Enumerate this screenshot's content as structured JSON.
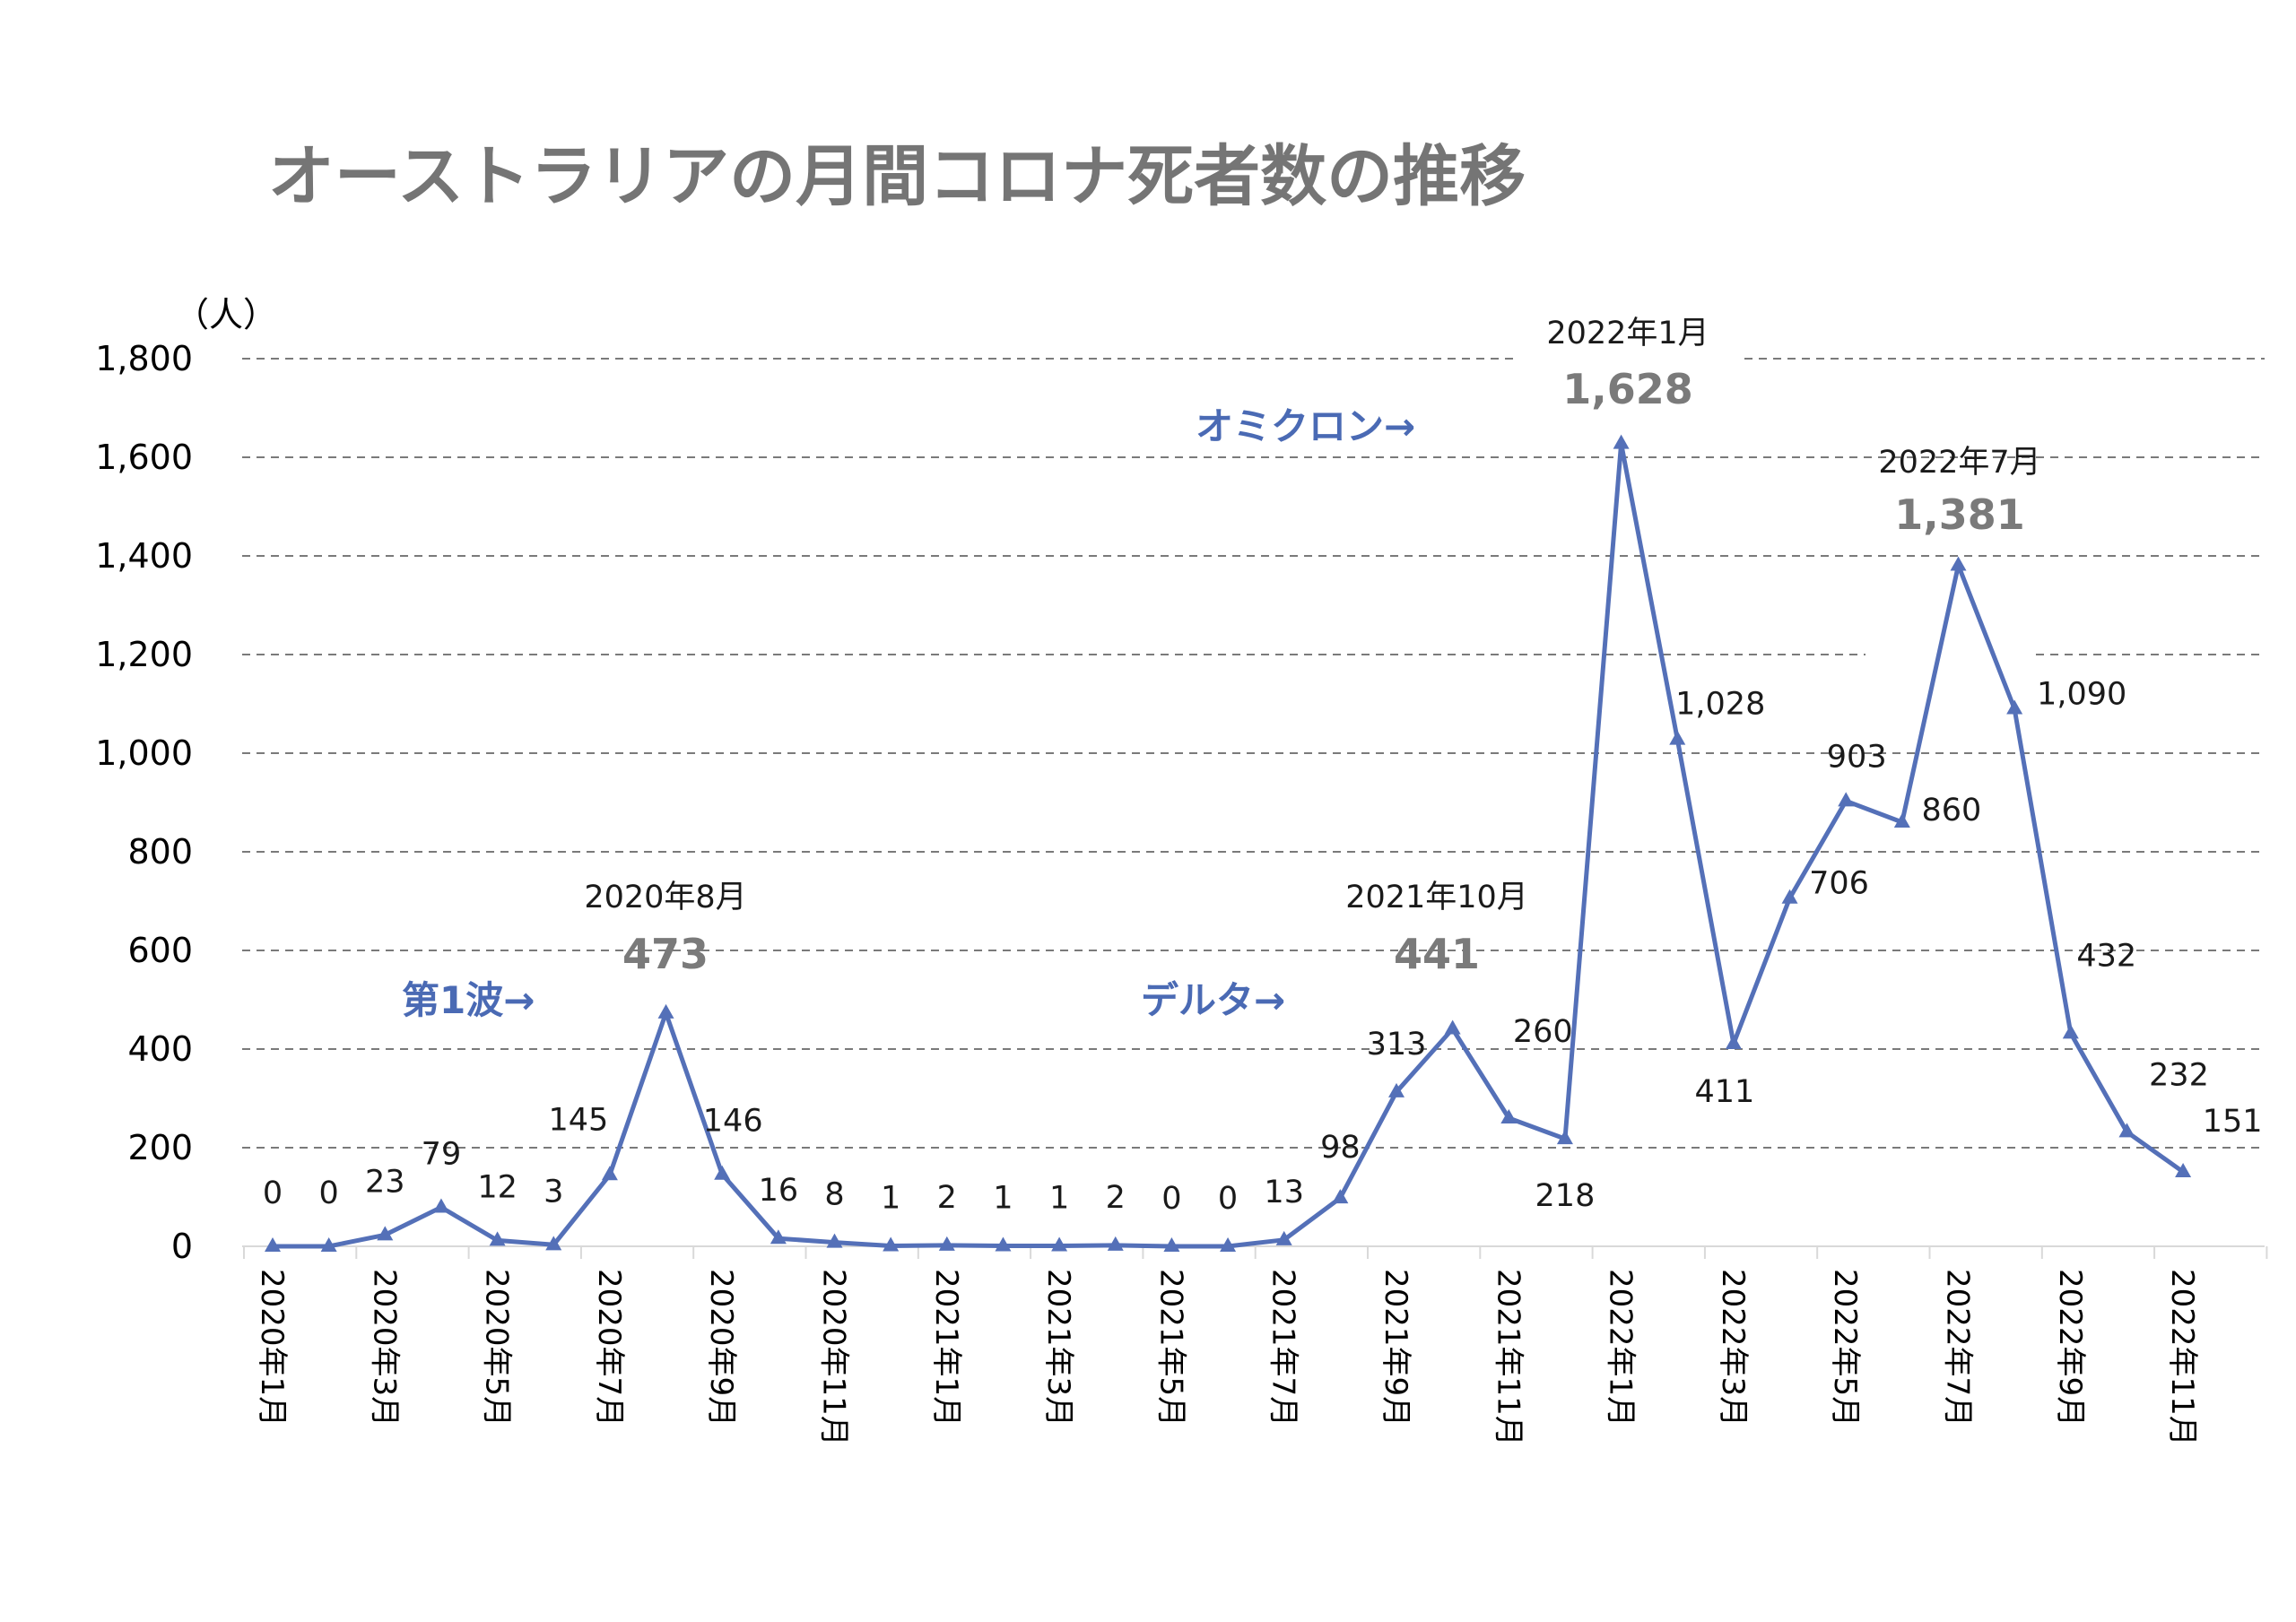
{
  "chart_data": {
    "type": "line",
    "title": "オーストラリアの月間コロナ死者数の推移",
    "y_unit": "（人）",
    "ylim": [
      0,
      1800
    ],
    "y_ticks": [
      "0",
      "200",
      "400",
      "600",
      "800",
      "1,000",
      "1,200",
      "1,400",
      "1,600",
      "1,800"
    ],
    "grid": true,
    "x": [
      "2020年1月",
      "2020年2月",
      "2020年3月",
      "2020年4月",
      "2020年5月",
      "2020年6月",
      "2020年7月",
      "2020年8月",
      "2020年9月",
      "2020年10月",
      "2020年11月",
      "2020年12月",
      "2021年1月",
      "2021年2月",
      "2021年3月",
      "2021年4月",
      "2021年5月",
      "2021年6月",
      "2021年7月",
      "2021年8月",
      "2021年9月",
      "2021年10月",
      "2021年11月",
      "2021年12月",
      "2022年1月",
      "2022年2月",
      "2022年3月",
      "2022年4月",
      "2022年5月",
      "2022年6月",
      "2022年7月",
      "2022年8月",
      "2022年9月",
      "2022年10月",
      "2022年11月"
    ],
    "x_tick_labels": [
      "2020年1月",
      "2020年3月",
      "2020年5月",
      "2020年7月",
      "2020年9月",
      "2020年11月",
      "2021年1月",
      "2021年3月",
      "2021年5月",
      "2021年7月",
      "2021年9月",
      "2021年11月",
      "2022年1月",
      "2022年3月",
      "2022年5月",
      "2022年7月",
      "2022年9月",
      "2022年11月"
    ],
    "values": [
      0,
      0,
      23,
      79,
      12,
      3,
      145,
      473,
      146,
      16,
      8,
      1,
      2,
      1,
      1,
      2,
      0,
      0,
      13,
      98,
      313,
      441,
      260,
      218,
      1628,
      1028,
      411,
      706,
      903,
      860,
      1381,
      1090,
      432,
      232,
      151
    ],
    "data_labels": [
      "0",
      "0",
      "23",
      "79",
      "12",
      "3",
      "145",
      "",
      "146",
      "16",
      "8",
      "1",
      "2",
      "1",
      "1",
      "2",
      "0",
      "0",
      "13",
      "98",
      "313",
      "",
      "260",
      "218",
      "",
      "1,028",
      "411",
      "706",
      "903",
      "860",
      "",
      "1,090",
      "432",
      "232",
      "151"
    ],
    "peaks": [
      {
        "date": "2020年8月",
        "value": "473"
      },
      {
        "date": "2021年10月",
        "value": "441"
      },
      {
        "date": "2022年1月",
        "value": "1,628"
      },
      {
        "date": "2022年7月",
        "value": "1,381"
      }
    ],
    "annotations": [
      "第1波→",
      "デルタ→",
      "オミクロン→"
    ],
    "line_color": "#5470b8",
    "annotation_color": "#4a6ab4"
  }
}
